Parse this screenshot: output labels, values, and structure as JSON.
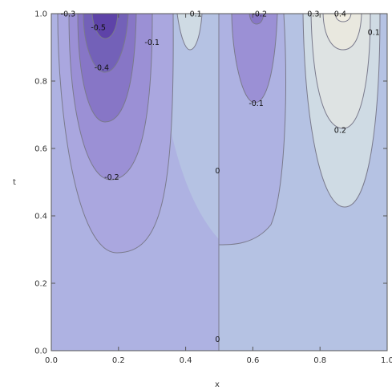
{
  "chart_data": {
    "type": "contour",
    "xlabel": "x",
    "ylabel": "t",
    "xlim": [
      0,
      1
    ],
    "ylim": [
      0,
      1
    ],
    "x_ticks": [
      "0.0",
      "0.2",
      "0.4",
      "0.6",
      "0.8",
      "1.0"
    ],
    "y_ticks": [
      "0.0",
      "0.2",
      "0.4",
      "0.6",
      "0.8",
      "1.0"
    ],
    "contour_labels": [
      {
        "text": "-0.3",
        "x": 0.05,
        "y": 1.0
      },
      {
        "text": "-0.5",
        "x": 0.14,
        "y": 0.96
      },
      {
        "text": "-0.4",
        "x": 0.15,
        "y": 0.84
      },
      {
        "text": "-0.1",
        "x": 0.3,
        "y": 0.915
      },
      {
        "text": "-0.2",
        "x": 0.18,
        "y": 0.515
      },
      {
        "text": "0.1",
        "x": 0.43,
        "y": 1.0
      },
      {
        "text": "-0.2",
        "x": 0.62,
        "y": 1.0
      },
      {
        "text": "-0.1",
        "x": 0.61,
        "y": 0.735
      },
      {
        "text": "0.3",
        "x": 0.78,
        "y": 1.0
      },
      {
        "text": "0.4",
        "x": 0.86,
        "y": 1.0
      },
      {
        "text": "0.1",
        "x": 0.96,
        "y": 0.945
      },
      {
        "text": "0.2",
        "x": 0.86,
        "y": 0.655
      },
      {
        "text": "0",
        "x": 0.495,
        "y": 0.535
      },
      {
        "text": "0",
        "x": 0.495,
        "y": 0.035
      }
    ],
    "levels": [
      -0.5,
      -0.4,
      -0.3,
      -0.2,
      -0.1,
      0,
      0.1,
      0.2,
      0.3,
      0.4
    ],
    "grid": false,
    "colors": {
      "lvl_neg5": "#5e43a8",
      "lvl_neg4": "#7361b8",
      "lvl_neg3": "#8776c6",
      "lvl_neg2": "#9b90d5",
      "lvl_neg1": "#aaa7df",
      "lvl_zero_left": "#aeb2e2",
      "lvl_zero_right": "#b5c2e3",
      "lvl_pos1": "#cfdbe4",
      "lvl_pos2": "#dee3e3",
      "lvl_pos3": "#e9e8df",
      "contour_line": "#7a7a8c"
    }
  }
}
